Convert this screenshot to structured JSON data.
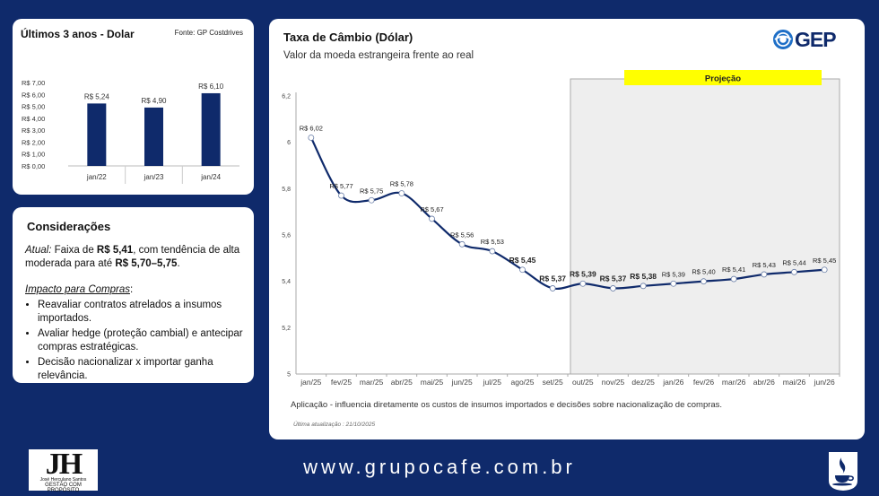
{
  "bars_card": {
    "title": "Últimos 3 anos  - Dolar",
    "source": "Fonte: GP Costdrives"
  },
  "bars_chart": {
    "type": "bar",
    "categories": [
      "jan/22",
      "jan/23",
      "jan/24"
    ],
    "values": [
      5.24,
      4.9,
      6.1
    ],
    "data_labels": [
      "R$ 5,24",
      "R$ 4,90",
      "R$ 6,10"
    ],
    "y_ticks": [
      "R$ 0,00",
      "R$ 1,00",
      "R$ 2,00",
      "R$ 3,00",
      "R$ 4,00",
      "R$ 5,00",
      "R$ 6,00",
      "R$ 7,00"
    ],
    "ylim": [
      0,
      7
    ],
    "bar_color": "#0f2a6b"
  },
  "notes": {
    "title": "Considerações",
    "atual_label": "Atual:",
    "atual_text1": " Faixa de ",
    "atual_value1": "R$ 5,41",
    "atual_text2": ", com tendência de alta moderada para até ",
    "atual_value2": "R$ 5,70–5,75",
    "atual_text3": ".",
    "impacto_title": "Impacto para Compras",
    "impacto_colon": ":",
    "bullets": [
      "Reavaliar contratos atrelados a insumos importados.",
      " Avaliar hedge (proteção cambial) e antecipar compras estratégicas.",
      "Decisão nacionalizar x importar ganha relevância."
    ]
  },
  "main_card": {
    "title": "Taxa de Câmbio (Dólar)",
    "subtitle": "Valor da moeda estrangeira frente ao real",
    "brand": "GEP",
    "projection_label": "Projeção",
    "application_note": "Aplicação - influencia diretamente os custos de insumos importados e decisões sobre nacionalização de compras.",
    "last_update": "Última atualização : 21/10/2025"
  },
  "chart_data": {
    "type": "line",
    "categories": [
      "jan/25",
      "fev/25",
      "mar/25",
      "abr/25",
      "mai/25",
      "jun/25",
      "jul/25",
      "ago/25",
      "set/25",
      "out/25",
      "nov/25",
      "dez/25",
      "jan/26",
      "fev/26",
      "mar/26",
      "abr/26",
      "mai/26",
      "jun/26"
    ],
    "marker_values": [
      6.02,
      5.77,
      5.75,
      5.78,
      5.67,
      5.56,
      5.53,
      5.45,
      5.37,
      5.39,
      5.37,
      5.38,
      5.39,
      5.4,
      5.41,
      5.43,
      5.44,
      5.45
    ],
    "data_labels": [
      "R$ 6,02",
      "R$ 5,77",
      "R$ 5,75",
      "R$ 5,78",
      "R$ 5,67",
      "R$ 5,56",
      "R$ 5,53",
      "R$ 5,45",
      "R$ 5,37",
      "R$ 5,39",
      "R$ 5,37",
      "R$ 5,38",
      "R$ 5,39",
      "R$ 5,40",
      "R$ 5,41",
      "R$ 5,43",
      "R$ 5,44",
      "R$ 5,45"
    ],
    "bold_labels": [
      7,
      8,
      9,
      10,
      11
    ],
    "y_ticks": [
      "5",
      "5,2",
      "5,4",
      "5,6",
      "5,8",
      "6",
      "6,2"
    ],
    "ylim": [
      5,
      6.2
    ],
    "projection_start": "out/25",
    "line_color": "#0f2a6b",
    "projection_fill": "#eeeeee",
    "projection_banner_color": "#ffff00"
  },
  "footer": {
    "url": "www.grupocafe.com.br",
    "logo_letters": "JH",
    "logo_name": "José Herculano Santos",
    "logo_tagline": "GESTÃO COM PROPÓSITO"
  }
}
